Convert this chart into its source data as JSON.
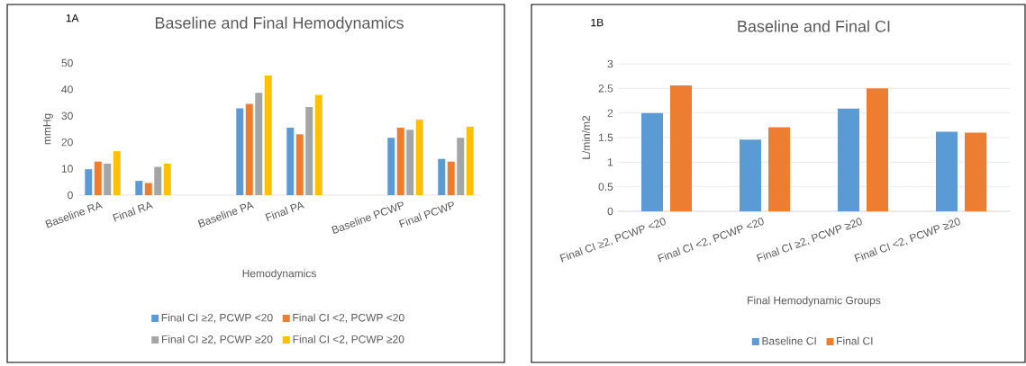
{
  "chart_data": [
    {
      "type": "bar",
      "title": "Baseline and Final Hemodynamics",
      "xlabel": "Hemodynamics",
      "ylabel": "mmHg",
      "annotations": [
        "1A"
      ],
      "categories": [
        "Baseline RA",
        "Final RA",
        null,
        "Baseline PA",
        "Final PA",
        null,
        "Baseline PCWP",
        "Final PCWP"
      ],
      "series": [
        {
          "name": "Final CI ≥2, PCWP <20",
          "color": "#5b9bd5",
          "values": [
            9.8,
            5.4,
            null,
            32.8,
            25.5,
            null,
            21.7,
            13.7
          ]
        },
        {
          "name": "Final CI <2, PCWP <20",
          "color": "#ed7d31",
          "values": [
            12.7,
            4.6,
            null,
            34.5,
            23.0,
            null,
            25.5,
            12.7
          ]
        },
        {
          "name": "Final CI ≥2, PCWP ≥20",
          "color": "#a5a5a5",
          "values": [
            11.9,
            10.7,
            null,
            38.7,
            33.3,
            null,
            24.7,
            21.7
          ]
        },
        {
          "name": "Final CI <2, PCWP ≥20",
          "color": "#ffc000",
          "values": [
            16.6,
            11.9,
            null,
            45.2,
            37.9,
            null,
            28.6,
            25.9
          ]
        }
      ],
      "ylim": [
        0,
        50
      ],
      "yticks": [
        0,
        10,
        20,
        30,
        40,
        50
      ],
      "legend": "bottom"
    },
    {
      "type": "bar",
      "title": "Baseline and Final CI",
      "xlabel": "Final Hemodynamic Groups",
      "ylabel": "L/min/m2",
      "annotations": [
        "1B"
      ],
      "categories": [
        "Final CI ≥2, PCWP <20",
        "Final CI <2, PCWP <20",
        "Final CI ≥2, PCWP ≥20",
        "Final CI <2, PCWP ≥20"
      ],
      "series": [
        {
          "name": "Baseline CI",
          "color": "#5b9bd5",
          "values": [
            2.0,
            1.46,
            2.09,
            1.62
          ]
        },
        {
          "name": "Final CI",
          "color": "#ed7d31",
          "values": [
            2.56,
            1.71,
            2.5,
            1.6
          ]
        }
      ],
      "ylim": [
        0,
        3
      ],
      "yticks": [
        0,
        0.5,
        1,
        1.5,
        2,
        2.5,
        3
      ],
      "grid": "y",
      "legend": "bottom"
    }
  ]
}
